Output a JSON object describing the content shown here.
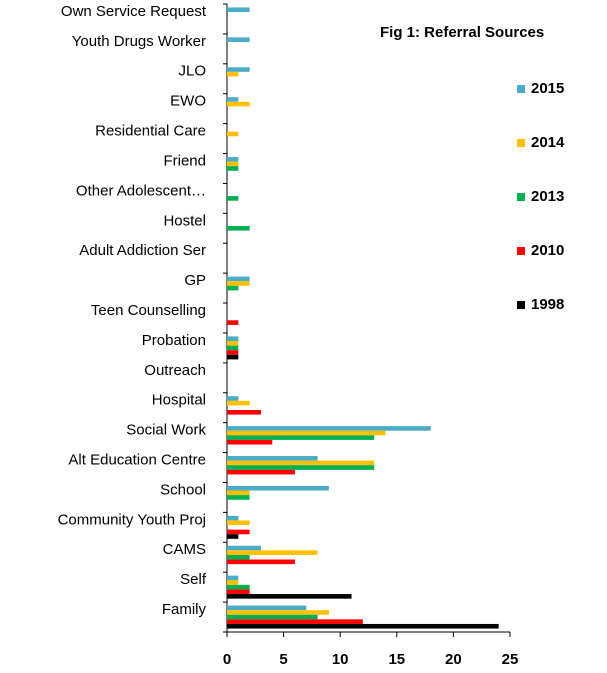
{
  "chart_data": {
    "type": "bar",
    "orientation": "horizontal",
    "title": "Fig 1:  Referral Sources",
    "categories": [
      "Own Service Request",
      "Youth Drugs Worker",
      "JLO",
      "EWO",
      "Residential Care",
      "Friend",
      "Other Adolescent…",
      "Hostel",
      "Adult Addiction Ser",
      "GP",
      "Teen Counselling",
      "Probation",
      "Outreach",
      "Hospital",
      "Social Work",
      "Alt Education Centre",
      "School",
      "Community Youth Proj",
      "CAMS",
      "Self",
      "Family"
    ],
    "series": [
      {
        "name": "2015",
        "color": "#4bacc6",
        "values": [
          2,
          2,
          2,
          1,
          0,
          1,
          0,
          0,
          0,
          2,
          0,
          1,
          0,
          1,
          18,
          8,
          9,
          1,
          3,
          1,
          7
        ]
      },
      {
        "name": "2014",
        "color": "#ffc000",
        "values": [
          0,
          0,
          1,
          2,
          1,
          1,
          0,
          0,
          0,
          2,
          0,
          1,
          0,
          2,
          14,
          13,
          2,
          2,
          8,
          1,
          9
        ]
      },
      {
        "name": "2013",
        "color": "#00b050",
        "values": [
          0,
          0,
          0,
          0,
          0,
          1,
          1,
          2,
          0,
          1,
          0,
          1,
          0,
          0,
          13,
          13,
          2,
          0,
          2,
          2,
          8
        ]
      },
      {
        "name": "2010",
        "color": "#ff0000",
        "values": [
          0,
          0,
          0,
          0,
          0,
          0,
          0,
          0,
          0,
          0,
          1,
          1,
          0,
          3,
          4,
          6,
          0,
          2,
          6,
          2,
          12
        ]
      },
      {
        "name": "1998",
        "color": "#000000",
        "values": [
          0,
          0,
          0,
          0,
          0,
          0,
          0,
          0,
          0,
          0,
          0,
          1,
          0,
          0,
          0,
          0,
          0,
          1,
          0,
          11,
          24
        ]
      }
    ],
    "xlim": [
      0,
      25
    ],
    "xticks": [
      0,
      5,
      10,
      15,
      20,
      25
    ],
    "grid": false,
    "legend": "right"
  }
}
